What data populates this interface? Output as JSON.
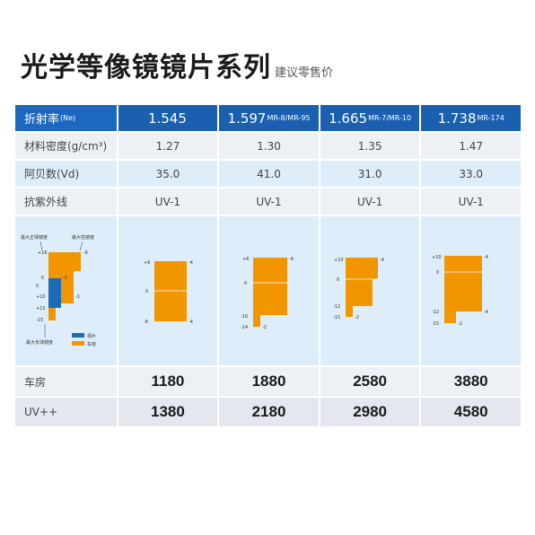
{
  "title": "光学等像镜镜片系列",
  "subtitle": "建议零售价",
  "table": {
    "header": {
      "label": "折射率",
      "label_suffix": "(Ne)",
      "cols": [
        {
          "value": "1.545",
          "sub": ""
        },
        {
          "value": "1.597",
          "sub": "MR-8/MR-95"
        },
        {
          "value": "1.665",
          "sub": "MR-7/MR-10"
        },
        {
          "value": "1.738",
          "sub": "MR-174"
        }
      ]
    },
    "rows": [
      {
        "label": "材料密度(g/cm³)",
        "values": [
          "1.27",
          "1.30",
          "1.35",
          "1.47"
        ]
      },
      {
        "label": "阿贝数(Vd)",
        "values": [
          "35.0",
          "41.0",
          "31.0",
          "33.0"
        ]
      },
      {
        "label": "抗紫外线",
        "values": [
          "UV-1",
          "UV-1",
          "UV-1",
          "UV-1"
        ]
      }
    ]
  },
  "legend_panel": {
    "max_pos_label": "最大正球镜度",
    "max_cyl_label": "最大柱镜度",
    "max_neg_label": "最大负球镜度",
    "ticks": [
      "+16",
      "-6",
      "-3",
      "-2",
      "+10",
      "-1",
      "+12",
      "-15",
      "0"
    ],
    "legend": [
      {
        "label": "现片",
        "color": "#1c6bb8"
      },
      {
        "label": "车房",
        "color": "#f29600"
      }
    ]
  },
  "range_charts": [
    {
      "top": "+6",
      "top_right": "-4",
      "mid": "0",
      "bottom": "-8",
      "bottom_right": "-4"
    },
    {
      "top": "+6",
      "top_right": "-4",
      "mid": "0",
      "low": "-10",
      "bottom": "-14",
      "bottom_right": "-2"
    },
    {
      "top": "+10",
      "top_right": "-4",
      "mid": "0",
      "low": "-12",
      "bottom": "-15",
      "bottom_right": "-2"
    },
    {
      "top": "+10",
      "top_right": "-4",
      "mid": "0",
      "low": "-12",
      "low_right": "-4",
      "bottom": "-15",
      "bottom_right": "-2"
    }
  ],
  "prices": [
    {
      "label": "车房",
      "values": [
        "1180",
        "1880",
        "2580",
        "3880"
      ]
    },
    {
      "label": "UV++",
      "values": [
        "1380",
        "2180",
        "2980",
        "4580"
      ]
    }
  ],
  "colors": {
    "header_blue": "#1a5fb0",
    "orange": "#f29600",
    "blue_bar": "#1c6bb8"
  }
}
